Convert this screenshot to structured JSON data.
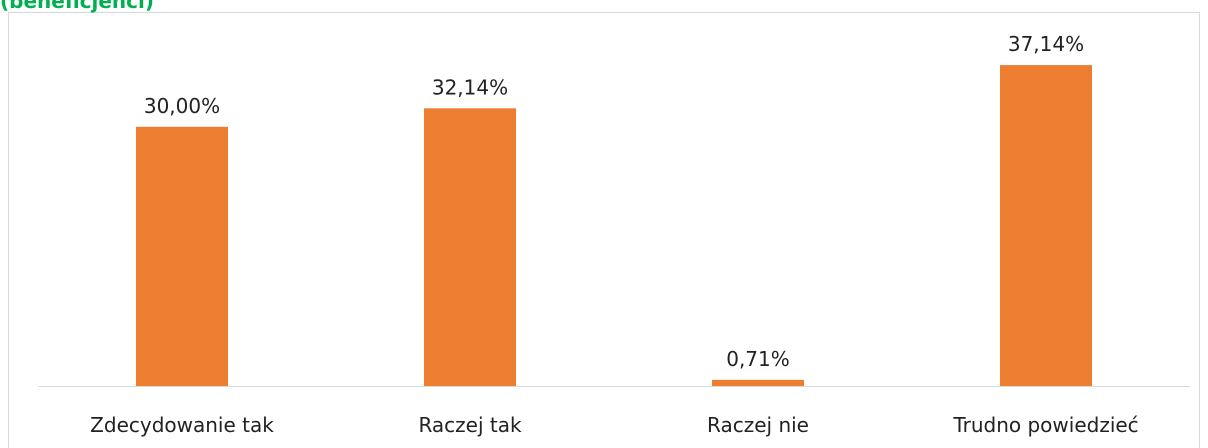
{
  "chart_data": {
    "type": "bar",
    "title": "(beneficjenci)",
    "categories": [
      "Zdecydowanie tak",
      "Raczej tak",
      "Raczej nie",
      "Trudno powiedzieć"
    ],
    "values": [
      30.0,
      32.14,
      0.71,
      37.14
    ],
    "value_labels": [
      "30,00%",
      "32,14%",
      "0,71%",
      "37,14%"
    ],
    "color": "#ed7d31",
    "ylim": [
      0,
      40
    ]
  }
}
